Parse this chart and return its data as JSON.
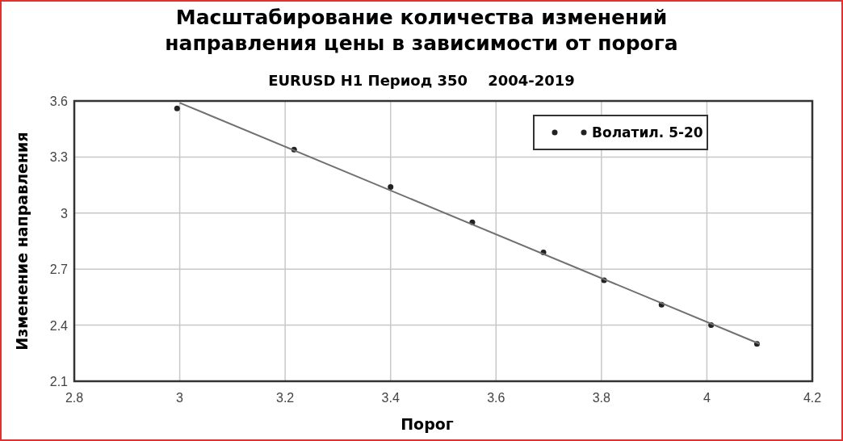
{
  "chart_data": {
    "type": "scatter",
    "title": "Масштабирование количества изменений\nнаправления цены в зависимости от порога",
    "subtitle": "EURUSD H1 Период 350    2004-2019",
    "xlabel": "Порог",
    "ylabel": "Изменение направления",
    "series": [
      {
        "name": "Волатил. 5-20",
        "color": "#222222",
        "x": [
          2.995,
          3.217,
          3.4,
          3.555,
          3.69,
          3.805,
          3.914,
          4.008,
          4.095
        ],
        "values": [
          3.56,
          3.34,
          3.14,
          2.95,
          2.79,
          2.64,
          2.51,
          2.4,
          2.3
        ],
        "marker": "circle"
      },
      {
        "type": "line",
        "color": "#707070",
        "x": [
          3.0,
          4.1
        ],
        "values": [
          3.59,
          2.3
        ],
        "line_style": "solid"
      }
    ],
    "xlim": [
      2.8,
      4.2
    ],
    "xticks": [
      2.8,
      3,
      3.2,
      3.4,
      3.6,
      3.8,
      4,
      4.2
    ],
    "ylim": [
      2.1,
      3.6
    ],
    "yticks": [
      2.1,
      2.4,
      2.7,
      3,
      3.3,
      3.6
    ],
    "grid": true,
    "legend": "top right"
  }
}
